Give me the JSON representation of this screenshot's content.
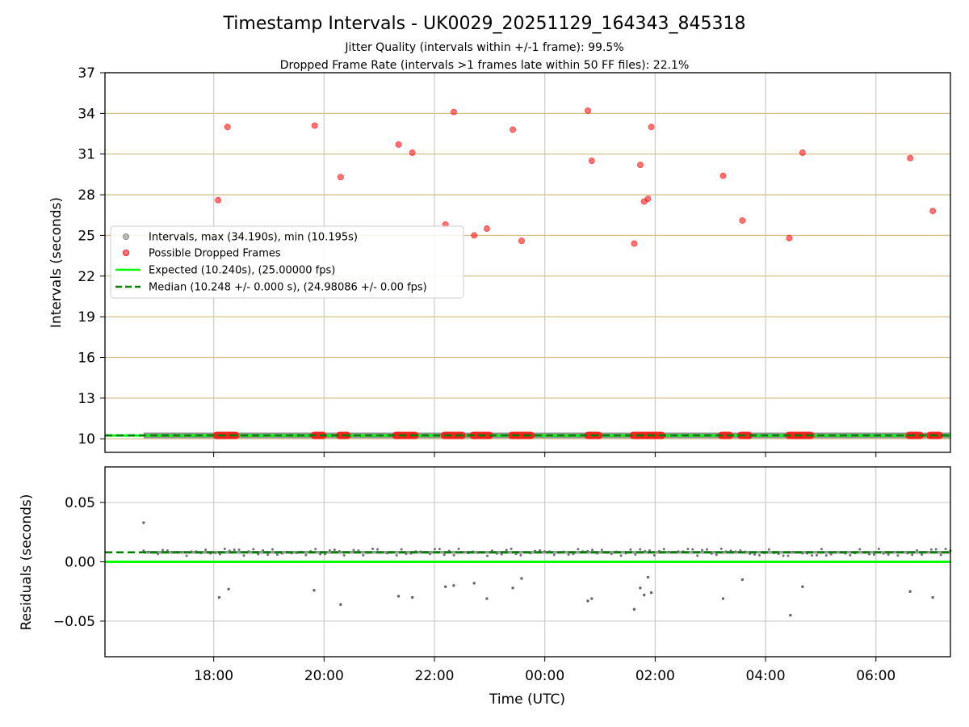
{
  "chart_data": [
    {
      "type": "scatter",
      "title": "Timestamp Intervals - UK0029_20251129_164343_845318",
      "subtitle_1": "Jitter Quality (intervals within +/-1 frame): 99.5%",
      "subtitle_2": "Dropped Frame Rate (intervals >1 frames late within 50 FF files): 22.1%",
      "ylabel": "Intervals (seconds)",
      "ylim": [
        9,
        37
      ],
      "yticks": [
        "10",
        "13",
        "16",
        "19",
        "22",
        "25",
        "28",
        "31",
        "34",
        "37"
      ],
      "xlim": [
        16.03,
        31.35
      ],
      "xticks": [
        {
          "v": 18,
          "label": "18:00"
        },
        {
          "v": 20,
          "label": "20:00"
        },
        {
          "v": 22,
          "label": "22:00"
        },
        {
          "v": 24,
          "label": "00:00"
        },
        {
          "v": 26,
          "label": "02:00"
        },
        {
          "v": 28,
          "label": "04:00"
        },
        {
          "v": 30,
          "label": "06:00"
        }
      ],
      "grid": true,
      "legend_position": "center-left",
      "legend": [
        "Intervals, max (34.190s), min (10.195s)",
        "Possible Dropped Frames",
        "Expected (10.240s), (25.00000 fps)",
        "Median (10.248 +/- 0.000 s), (24.98086 +/- 0.00 fps)"
      ],
      "series": [
        {
          "name": "Intervals, max (34.190s), min (10.195s)",
          "color": "#808080",
          "x_range": [
            16.73,
            31.35
          ],
          "y": 10.248
        },
        {
          "name": "Possible Dropped Frames",
          "color": "#ff0000",
          "x": [
            18.08,
            18.25,
            19.83,
            20.3,
            21.35,
            21.6,
            22.2,
            22.35,
            22.72,
            22.95,
            23.42,
            23.58,
            24.78,
            24.85,
            25.62,
            25.73,
            25.8,
            25.87,
            25.93,
            27.23,
            27.58,
            28.43,
            28.67,
            30.62,
            31.03
          ],
          "y": [
            27.6,
            33.0,
            33.1,
            29.3,
            31.7,
            31.1,
            25.8,
            34.1,
            25.0,
            25.5,
            32.8,
            24.6,
            34.2,
            30.5,
            24.4,
            30.2,
            27.5,
            27.7,
            33.0,
            29.4,
            26.1,
            24.8,
            31.1,
            30.7,
            26.8
          ],
          "clusters_near_10_2": [
            [
              18.05,
              18.4
            ],
            [
              19.82,
              19.98
            ],
            [
              20.28,
              20.42
            ],
            [
              21.3,
              21.48
            ],
            [
              21.52,
              21.65
            ],
            [
              22.18,
              22.5
            ],
            [
              22.7,
              23.0
            ],
            [
              23.4,
              23.75
            ],
            [
              24.78,
              24.98
            ],
            [
              25.6,
              26.12
            ],
            [
              27.2,
              27.35
            ],
            [
              27.55,
              27.7
            ],
            [
              28.42,
              28.62
            ],
            [
              28.65,
              28.82
            ],
            [
              30.6,
              30.8
            ],
            [
              30.98,
              31.15
            ]
          ]
        },
        {
          "name": "Expected (10.240s), (25.00000 fps)",
          "color": "#00ff00",
          "y": 10.24
        },
        {
          "name": "Median (10.248 +/- 0.000 s), (24.98086 +/- 0.00 fps)",
          "color": "#008000",
          "y": 10.248
        }
      ]
    },
    {
      "type": "scatter",
      "xlabel": "Time (UTC)",
      "ylabel": "Residuals (seconds)",
      "ylim": [
        -0.08,
        0.08
      ],
      "yticks": [
        "−0.05",
        "0.00",
        "0.05"
      ],
      "ytick_values": [
        -0.05,
        0.0,
        0.05
      ],
      "xlim": [
        16.03,
        31.35
      ],
      "grid": true,
      "series": [
        {
          "name": "",
          "color": "#808080",
          "base_y": 0.008,
          "x_range": [
            16.73,
            31.35
          ]
        },
        {
          "name": "",
          "color": "#808080",
          "x": [
            16.73,
            18.1,
            18.27,
            19.82,
            20.3,
            21.35,
            21.6,
            22.2,
            22.35,
            22.72,
            22.95,
            23.42,
            23.58,
            24.78,
            24.85,
            25.62,
            25.73,
            25.8,
            25.87,
            25.93,
            27.23,
            27.58,
            28.45,
            28.67,
            30.62,
            31.03
          ],
          "y": [
            0.033,
            -0.03,
            -0.023,
            -0.024,
            -0.036,
            -0.029,
            -0.03,
            -0.021,
            -0.02,
            -0.018,
            -0.031,
            -0.022,
            -0.014,
            -0.033,
            -0.031,
            -0.04,
            -0.022,
            -0.028,
            -0.013,
            -0.026,
            -0.031,
            -0.015,
            -0.045,
            -0.021,
            -0.025,
            -0.03
          ]
        },
        {
          "name": "",
          "color": "#00ff00",
          "y": 0.0
        },
        {
          "name": "",
          "color": "#008000",
          "y": 0.008
        }
      ]
    }
  ]
}
